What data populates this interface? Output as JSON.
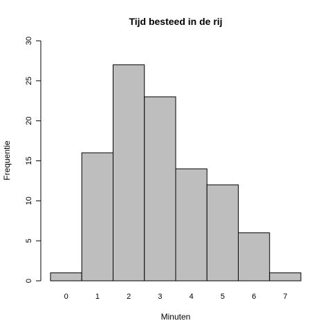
{
  "chart_data": {
    "type": "bar",
    "title": "Tijd besteed in de rij",
    "xlabel": "Minuten",
    "ylabel": "Frequentie",
    "categories": [
      "0",
      "1",
      "2",
      "3",
      "4",
      "5",
      "6",
      "7"
    ],
    "values": [
      1,
      16,
      27,
      23,
      14,
      12,
      6,
      1
    ],
    "ylim": [
      0,
      30
    ],
    "yticks": [
      "0",
      "5",
      "10",
      "15",
      "20",
      "25",
      "30"
    ],
    "grid": false,
    "bar_color": "#bebebe",
    "edge_color": "#000000"
  }
}
